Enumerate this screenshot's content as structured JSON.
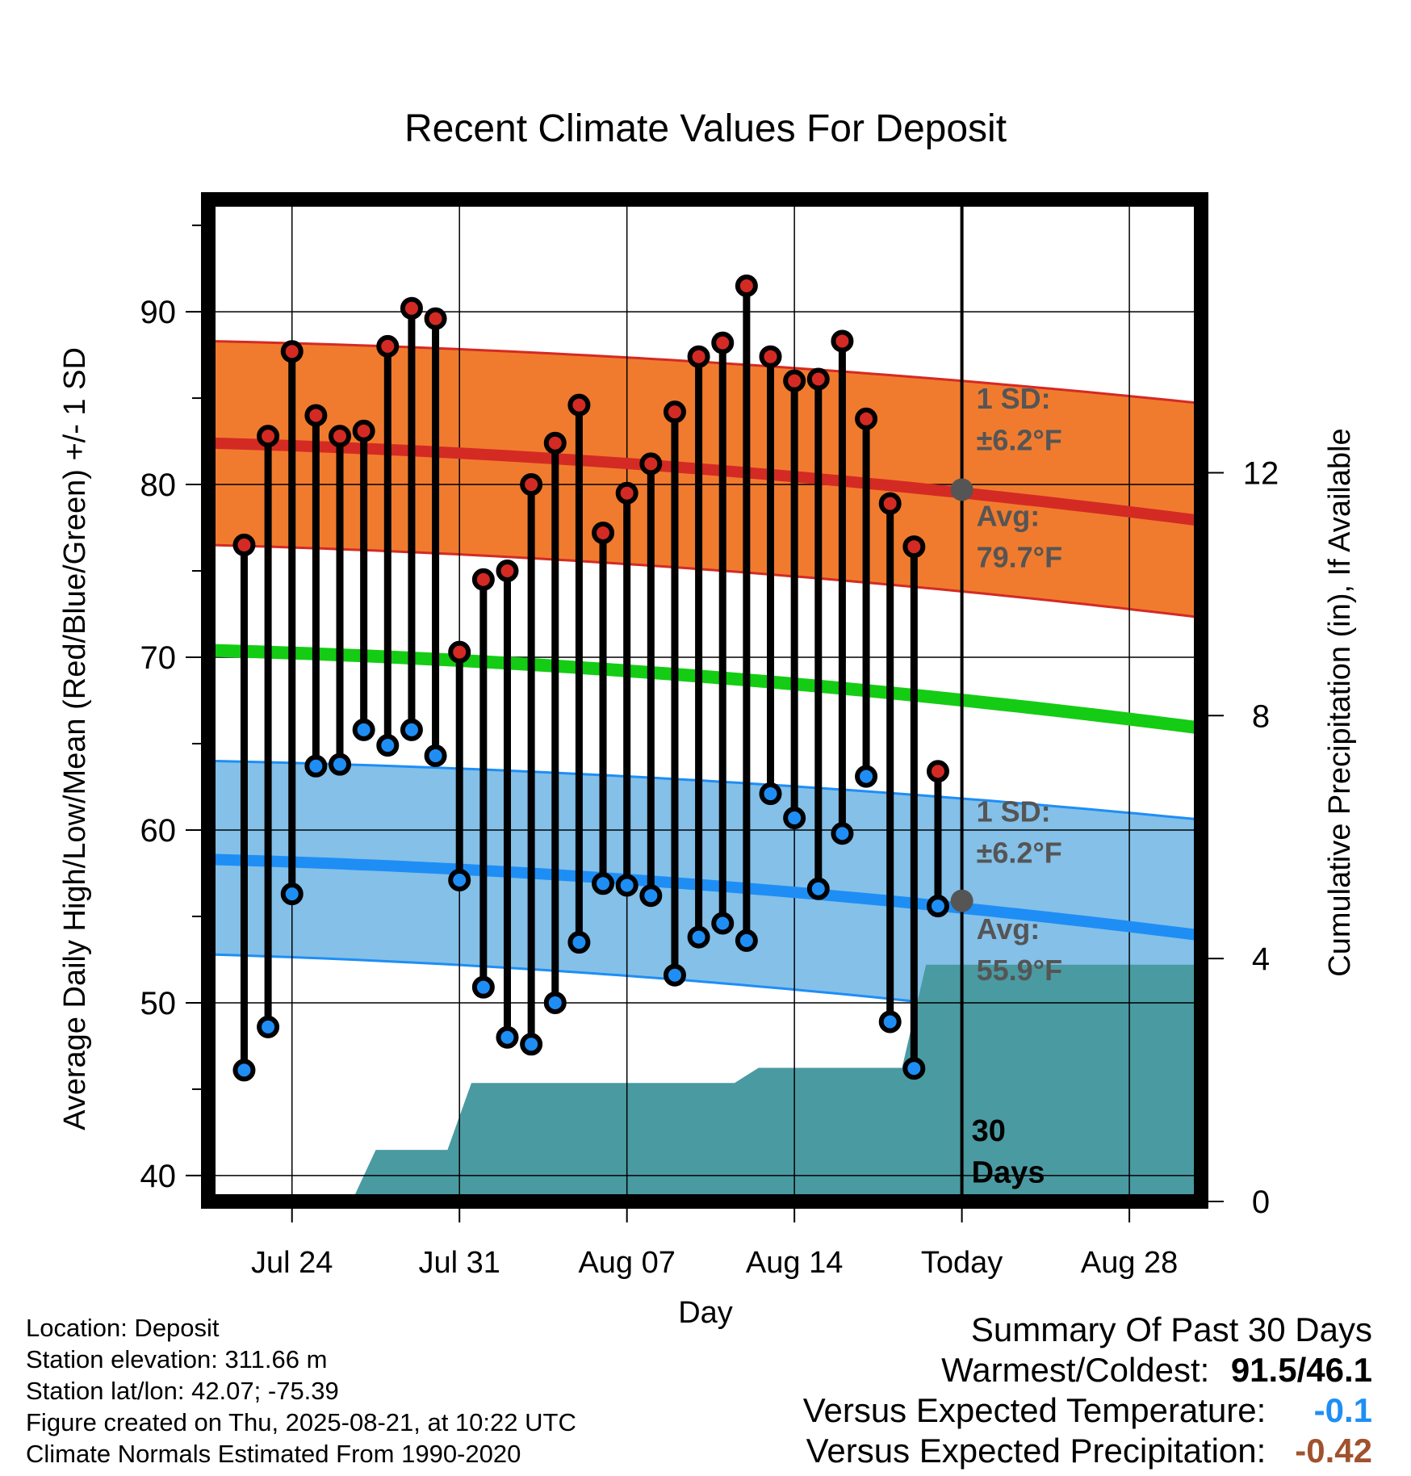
{
  "chart_data": {
    "type": "line",
    "title": "Recent Climate Values For Deposit",
    "xlabel": "Day",
    "ylabel": "Average Daily High/Low/Mean (Red/Blue/Green) +/- 1 SD",
    "y2label": "Cumulative Precipitation (in), If Available",
    "ylim": [
      38.5,
      96.5
    ],
    "y_ticks": [
      40,
      50,
      60,
      70,
      80,
      90
    ],
    "y2lim": [
      0,
      16.5
    ],
    "y2_ticks": [
      0,
      4,
      8,
      12
    ],
    "x_ticks": [
      {
        "day": 3,
        "label": "Jul 24"
      },
      {
        "day": 10,
        "label": "Jul 31"
      },
      {
        "day": 17,
        "label": "Aug 07"
      },
      {
        "day": 24,
        "label": "Aug 14"
      },
      {
        "day": 31,
        "label": "Today"
      },
      {
        "day": 38,
        "label": "Aug 28"
      }
    ],
    "xlim": [
      -0.5,
      41
    ],
    "grid": true,
    "today_day": 31,
    "days": [
      1,
      2,
      3,
      4,
      5,
      6,
      7,
      8,
      9,
      10,
      11,
      12,
      13,
      14,
      15,
      16,
      17,
      18,
      19,
      20,
      21,
      22,
      23,
      24,
      25,
      26,
      27,
      28,
      29,
      30
    ],
    "highs": [
      76.5,
      82.8,
      87.7,
      84.0,
      82.8,
      83.1,
      88.0,
      90.2,
      89.6,
      70.3,
      74.5,
      75.0,
      80.0,
      82.4,
      84.6,
      77.2,
      79.5,
      81.2,
      84.2,
      87.4,
      88.2,
      91.5,
      87.4,
      86.0,
      86.1,
      88.3,
      83.8,
      78.9,
      76.4,
      63.4
    ],
    "lows": [
      46.1,
      48.6,
      56.3,
      63.7,
      63.8,
      65.8,
      64.9,
      65.8,
      64.3,
      57.1,
      50.9,
      48.0,
      47.6,
      50.0,
      53.5,
      56.9,
      56.8,
      56.2,
      51.6,
      53.8,
      54.6,
      53.6,
      62.1,
      60.7,
      56.6,
      59.8,
      63.1,
      48.9,
      46.2,
      55.6
    ],
    "normal_high": {
      "days": [
        -0.5,
        41
      ],
      "mean": [
        82.4,
        77.9
      ],
      "upper": [
        88.3,
        84.7
      ],
      "lower": [
        76.5,
        72.3
      ]
    },
    "normal_low": {
      "days": [
        -0.5,
        41
      ],
      "mean": [
        58.3,
        53.9
      ],
      "upper": [
        64.0,
        60.6
      ],
      "lower": [
        52.8,
        48.1
      ]
    },
    "normal_mean": {
      "days": [
        -0.5,
        41
      ],
      "values": [
        70.4,
        65.9
      ]
    },
    "precip": {
      "days": [
        1.5,
        2.5,
        3.5,
        4.5,
        5.5,
        6.5,
        7.5,
        8.5,
        9.5,
        10.5,
        11.5,
        21.5,
        22.5,
        28.5,
        29.5,
        41
      ],
      "values": [
        0,
        0,
        0,
        0,
        0,
        0.85,
        0.85,
        0.85,
        0.85,
        1.95,
        1.95,
        1.95,
        2.2,
        2.2,
        3.9,
        3.9
      ]
    },
    "colors": {
      "high_band": "#f07b2e",
      "high_line": "#d42a24",
      "low_band": "#84c0e8",
      "low_line": "#1e8ef5",
      "mean_line": "#14cc14",
      "precip": "#4a9aa2",
      "high_marker": "#d42a24",
      "low_marker": "#1e8ef5",
      "annotation_text": "#555555",
      "annotation_dot": "#555555"
    },
    "annotations": {
      "high_sd": [
        "1 SD:",
        "±6.2°F"
      ],
      "high_avg": [
        "Avg:",
        "79.7°F"
      ],
      "low_sd": [
        "1 SD:",
        "±6.2°F"
      ],
      "low_avg": [
        "Avg:",
        "55.9°F"
      ],
      "today_avg_high": 79.7,
      "today_avg_low": 55.9,
      "period": [
        "30",
        "Days"
      ]
    }
  },
  "station": {
    "location": "Location: Deposit",
    "elevation": "Station elevation: 311.66 m",
    "latlon": "Station lat/lon: 42.07; -75.39",
    "created": "Figure created on Thu, 2025-08-21, at 10:22 UTC",
    "normals": "Climate Normals Estimated From 1990-2020"
  },
  "summary": {
    "heading": "Summary Of Past 30 Days",
    "warm_cold_label": "Warmest/Coldest:",
    "warm_cold_value": "91.5/46.1",
    "temp_label": "Versus Expected Temperature:",
    "temp_value": "-0.1",
    "temp_color": "#1e8ef5",
    "precip_label": "Versus Expected Precipitation:",
    "precip_value": "-0.42",
    "precip_color": "#a0522d"
  }
}
